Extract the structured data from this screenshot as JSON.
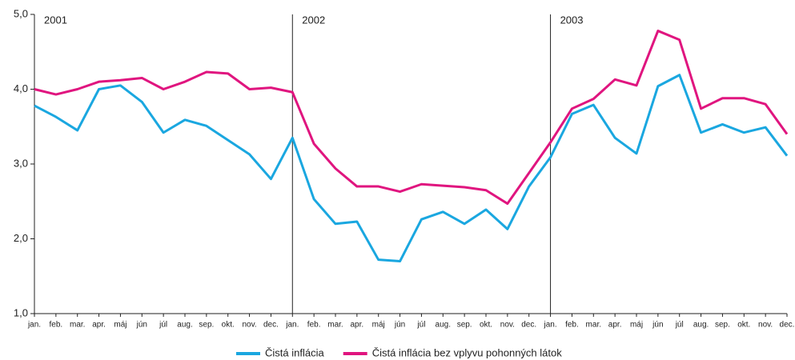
{
  "chart_data": {
    "type": "line",
    "categories": [
      "jan.",
      "feb.",
      "mar.",
      "apr.",
      "máj",
      "jún",
      "júl",
      "aug.",
      "sep.",
      "okt.",
      "nov.",
      "dec.",
      "jan.",
      "feb.",
      "mar.",
      "apr.",
      "máj",
      "jún",
      "júl",
      "aug.",
      "sep.",
      "okt.",
      "nov.",
      "dec.",
      "jan.",
      "feb.",
      "mar.",
      "apr.",
      "máj",
      "jún",
      "júl",
      "aug.",
      "sep.",
      "okt.",
      "nov.",
      "dec."
    ],
    "annotations": [
      "2001",
      "2002",
      "2003"
    ],
    "series": [
      {
        "name": "Čistá inflácia",
        "color": "#1aa7e0",
        "values": [
          3.78,
          3.63,
          3.45,
          4.0,
          4.05,
          3.83,
          3.42,
          3.59,
          3.51,
          3.32,
          3.13,
          2.8,
          3.35,
          2.53,
          2.2,
          2.23,
          1.72,
          1.7,
          2.26,
          2.36,
          2.2,
          2.39,
          2.13,
          2.7,
          3.09,
          3.67,
          3.79,
          3.35,
          3.14,
          4.04,
          4.19,
          3.42,
          3.53,
          3.42,
          3.49,
          3.11
        ]
      },
      {
        "name": "Čistá inflácia bez vplyvu pohonných látok",
        "color": "#e0157f",
        "values": [
          4.0,
          3.93,
          4.0,
          4.1,
          4.12,
          4.15,
          4.0,
          4.1,
          4.23,
          4.21,
          4.0,
          4.02,
          3.96,
          3.27,
          2.94,
          2.7,
          2.7,
          2.63,
          2.73,
          2.71,
          2.69,
          2.65,
          2.47,
          2.88,
          3.29,
          3.74,
          3.87,
          4.13,
          4.05,
          4.78,
          4.66,
          3.74,
          3.88,
          3.88,
          3.8,
          3.4
        ]
      }
    ],
    "ylim": [
      1,
      5
    ],
    "yticks": [
      {
        "value": 1,
        "label": "1,0"
      },
      {
        "value": 2,
        "label": "2,0"
      },
      {
        "value": 3,
        "label": "3,0"
      },
      {
        "value": 4,
        "label": "4,0"
      },
      {
        "value": 5,
        "label": "5,0"
      }
    ],
    "legend": "bottom"
  }
}
